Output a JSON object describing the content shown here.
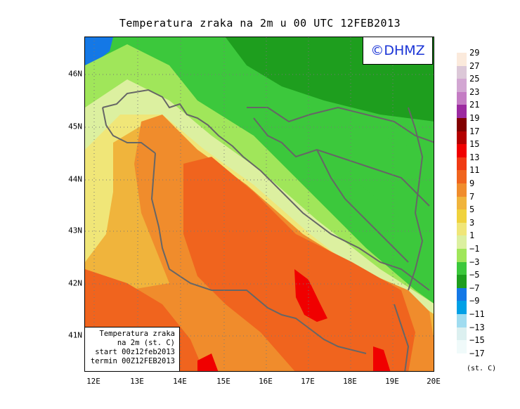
{
  "title": "Temperatura zraka na 2m u 00 UTC 12FEB2013",
  "logo": "©DHMZ",
  "info_box": {
    "line1": "Temperatura zraka",
    "line2": "na 2m (st. C)",
    "line3": "start 00z12feb2013",
    "line4": "termin 00Z12FEB2013"
  },
  "lat_labels": [
    "46N",
    "45N",
    "44N",
    "43N",
    "42N",
    "41N"
  ],
  "lon_labels": [
    "12E",
    "13E",
    "14E",
    "15E",
    "16E",
    "17E",
    "18E",
    "19E",
    "20E"
  ],
  "legend": {
    "labels": [
      "29",
      "27",
      "25",
      "23",
      "21",
      "19",
      "17",
      "15",
      "13",
      "11",
      "9",
      "7",
      "5",
      "3",
      "1",
      "−1",
      "−3",
      "−5",
      "−7",
      "−9",
      "−11",
      "−13",
      "−15",
      "−17"
    ],
    "colors": [
      "#fbeadc",
      "#dcc8d8",
      "#d2a6d2",
      "#c47cc4",
      "#9c2aa0",
      "#820000",
      "#b40000",
      "#f00000",
      "#f03a14",
      "#f0641e",
      "#f08c2c",
      "#f0b43c",
      "#f0d23c",
      "#f0e678",
      "#dcf0a0",
      "#a0e65a",
      "#3cc83c",
      "#1e9e1e",
      "#1478e6",
      "#00a0e6",
      "#a0dcf0",
      "#dcf0f0",
      "#f0fafa"
    ],
    "units": "(st. C)"
  },
  "colors": {
    "sea_orange": "#f0641e",
    "sea_light_orange": "#f08c2c",
    "land_green": "#3cc83c",
    "land_light_green": "#a0e65a",
    "red": "#f00000",
    "blue": "#1478e6",
    "border_line": "#666666"
  }
}
